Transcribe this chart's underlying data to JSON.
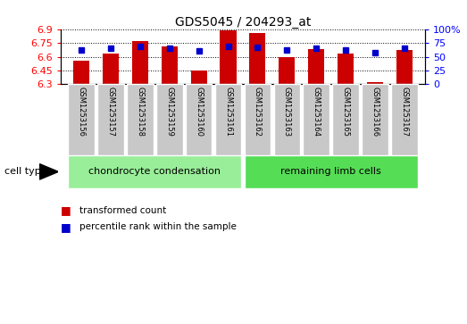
{
  "title": "GDS5045 / 204293_at",
  "samples": [
    "GSM1253156",
    "GSM1253157",
    "GSM1253158",
    "GSM1253159",
    "GSM1253160",
    "GSM1253161",
    "GSM1253162",
    "GSM1253163",
    "GSM1253164",
    "GSM1253165",
    "GSM1253166",
    "GSM1253167"
  ],
  "bar_values": [
    6.555,
    6.63,
    6.775,
    6.71,
    6.445,
    6.885,
    6.855,
    6.6,
    6.685,
    6.635,
    6.325,
    6.67
  ],
  "percentile_values": [
    63,
    65,
    68,
    66,
    60,
    68,
    67,
    62,
    65,
    63,
    57,
    65
  ],
  "bar_color": "#cc0000",
  "dot_color": "#0000cc",
  "ylim_left": [
    6.3,
    6.9
  ],
  "ylim_right": [
    0,
    100
  ],
  "yticks_left": [
    6.3,
    6.45,
    6.6,
    6.75,
    6.9
  ],
  "yticks_right": [
    0,
    25,
    50,
    75,
    100
  ],
  "ytick_labels_right": [
    "0",
    "25",
    "50",
    "75",
    "100%"
  ],
  "group1_label": "chondrocyte condensation",
  "group2_label": "remaining limb cells",
  "group1_color": "#99ee99",
  "group2_color": "#55dd55",
  "cell_type_label": "cell type",
  "legend_bar_label": "transformed count",
  "legend_dot_label": "percentile rank within the sample",
  "sample_box_color": "#c8c8c8",
  "plot_bg": "#ffffff",
  "n_group1": 6,
  "n_group2": 6
}
